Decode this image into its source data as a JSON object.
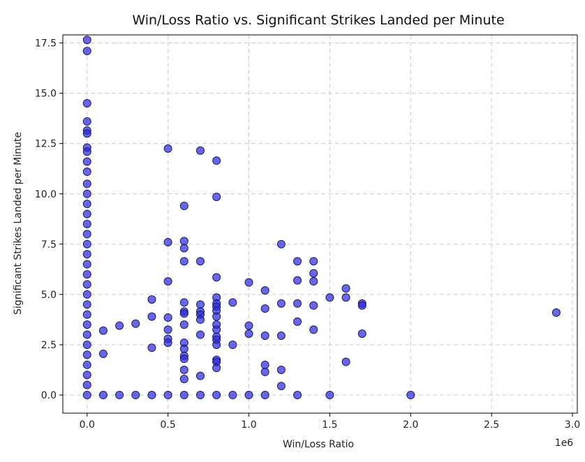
{
  "chart_data": {
    "type": "scatter",
    "title": "Win/Loss Ratio vs. Significant Strikes Landed per Minute",
    "xlabel": "Win/Loss Ratio",
    "ylabel": "Significant Strikes Landed per Minute",
    "x_offset_text": "1e6",
    "xlim": [
      -0.15,
      3.03
    ],
    "ylim": [
      -0.9,
      17.9
    ],
    "xticks": [
      0.0,
      0.5,
      1.0,
      1.5,
      2.0,
      2.5,
      3.0
    ],
    "xtick_labels": [
      "0.0",
      "0.5",
      "1.0",
      "1.5",
      "2.0",
      "2.5",
      "3.0"
    ],
    "yticks": [
      0.0,
      2.5,
      5.0,
      7.5,
      10.0,
      12.5,
      15.0,
      17.5
    ],
    "ytick_labels": [
      "0.0",
      "2.5",
      "5.0",
      "7.5",
      "10.0",
      "12.5",
      "15.0",
      "17.5"
    ],
    "grid": true,
    "legend": "none",
    "colors": {
      "point_fill": "#2828dc",
      "point_edge": "#1a1a6e"
    },
    "points": [
      [
        0.0,
        17.65
      ],
      [
        0.0,
        17.1
      ],
      [
        0.0,
        14.5
      ],
      [
        0.0,
        13.6
      ],
      [
        0.0,
        13.15
      ],
      [
        0.0,
        13.0
      ],
      [
        0.0,
        12.3
      ],
      [
        0.0,
        12.1
      ],
      [
        0.0,
        11.6
      ],
      [
        0.0,
        11.1
      ],
      [
        0.0,
        10.5
      ],
      [
        0.0,
        10.0
      ],
      [
        0.0,
        9.5
      ],
      [
        0.0,
        9.0
      ],
      [
        0.0,
        8.5
      ],
      [
        0.0,
        8.0
      ],
      [
        0.0,
        7.5
      ],
      [
        0.0,
        7.0
      ],
      [
        0.0,
        6.5
      ],
      [
        0.0,
        6.0
      ],
      [
        0.0,
        5.5
      ],
      [
        0.0,
        5.0
      ],
      [
        0.0,
        4.5
      ],
      [
        0.0,
        4.0
      ],
      [
        0.0,
        3.5
      ],
      [
        0.0,
        3.0
      ],
      [
        0.0,
        2.5
      ],
      [
        0.0,
        2.0
      ],
      [
        0.0,
        1.5
      ],
      [
        0.0,
        1.0
      ],
      [
        0.0,
        0.5
      ],
      [
        0.0,
        0.0
      ],
      [
        0.1,
        3.2
      ],
      [
        0.1,
        2.05
      ],
      [
        0.1,
        0.0
      ],
      [
        0.2,
        3.45
      ],
      [
        0.2,
        0.0
      ],
      [
        0.3,
        3.55
      ],
      [
        0.3,
        0.0
      ],
      [
        0.4,
        4.75
      ],
      [
        0.4,
        3.9
      ],
      [
        0.4,
        2.35
      ],
      [
        0.4,
        0.0
      ],
      [
        0.5,
        12.25
      ],
      [
        0.5,
        7.6
      ],
      [
        0.5,
        5.65
      ],
      [
        0.5,
        3.85
      ],
      [
        0.5,
        3.25
      ],
      [
        0.5,
        2.8
      ],
      [
        0.5,
        2.6
      ],
      [
        0.5,
        0.0
      ],
      [
        0.6,
        9.4
      ],
      [
        0.6,
        7.65
      ],
      [
        0.6,
        7.3
      ],
      [
        0.6,
        6.65
      ],
      [
        0.6,
        4.6
      ],
      [
        0.6,
        4.15
      ],
      [
        0.6,
        4.05
      ],
      [
        0.6,
        3.5
      ],
      [
        0.6,
        2.6
      ],
      [
        0.6,
        2.3
      ],
      [
        0.6,
        1.95
      ],
      [
        0.6,
        1.8
      ],
      [
        0.6,
        1.25
      ],
      [
        0.6,
        0.8
      ],
      [
        0.6,
        0.0
      ],
      [
        0.7,
        12.15
      ],
      [
        0.7,
        6.65
      ],
      [
        0.7,
        4.5
      ],
      [
        0.7,
        4.15
      ],
      [
        0.7,
        4.0
      ],
      [
        0.7,
        3.75
      ],
      [
        0.7,
        3.0
      ],
      [
        0.7,
        0.95
      ],
      [
        0.7,
        0.0
      ],
      [
        0.8,
        11.65
      ],
      [
        0.8,
        9.85
      ],
      [
        0.8,
        5.85
      ],
      [
        0.8,
        4.85
      ],
      [
        0.8,
        4.55
      ],
      [
        0.8,
        4.4
      ],
      [
        0.8,
        4.2
      ],
      [
        0.8,
        3.9
      ],
      [
        0.8,
        3.5
      ],
      [
        0.8,
        3.25
      ],
      [
        0.8,
        2.9
      ],
      [
        0.8,
        2.75
      ],
      [
        0.8,
        2.5
      ],
      [
        0.8,
        1.75
      ],
      [
        0.8,
        1.65
      ],
      [
        0.8,
        1.35
      ],
      [
        0.8,
        0.0
      ],
      [
        0.9,
        4.6
      ],
      [
        0.9,
        2.5
      ],
      [
        0.9,
        0.0
      ],
      [
        1.0,
        5.6
      ],
      [
        1.0,
        3.45
      ],
      [
        1.0,
        3.05
      ],
      [
        1.0,
        0.0
      ],
      [
        1.1,
        5.2
      ],
      [
        1.1,
        4.3
      ],
      [
        1.1,
        2.95
      ],
      [
        1.1,
        1.5
      ],
      [
        1.1,
        1.15
      ],
      [
        1.1,
        0.0
      ],
      [
        1.2,
        7.5
      ],
      [
        1.2,
        4.55
      ],
      [
        1.2,
        2.95
      ],
      [
        1.2,
        1.25
      ],
      [
        1.2,
        0.45
      ],
      [
        1.3,
        6.65
      ],
      [
        1.3,
        5.7
      ],
      [
        1.3,
        4.55
      ],
      [
        1.3,
        3.65
      ],
      [
        1.3,
        0.0
      ],
      [
        1.4,
        6.65
      ],
      [
        1.4,
        6.05
      ],
      [
        1.4,
        5.65
      ],
      [
        1.4,
        4.45
      ],
      [
        1.4,
        3.25
      ],
      [
        1.5,
        4.85
      ],
      [
        1.5,
        0.0
      ],
      [
        1.6,
        5.3
      ],
      [
        1.6,
        4.85
      ],
      [
        1.6,
        1.65
      ],
      [
        1.7,
        4.55
      ],
      [
        1.7,
        4.45
      ],
      [
        1.7,
        3.05
      ],
      [
        2.0,
        0.0
      ],
      [
        2.9,
        4.1
      ]
    ]
  }
}
